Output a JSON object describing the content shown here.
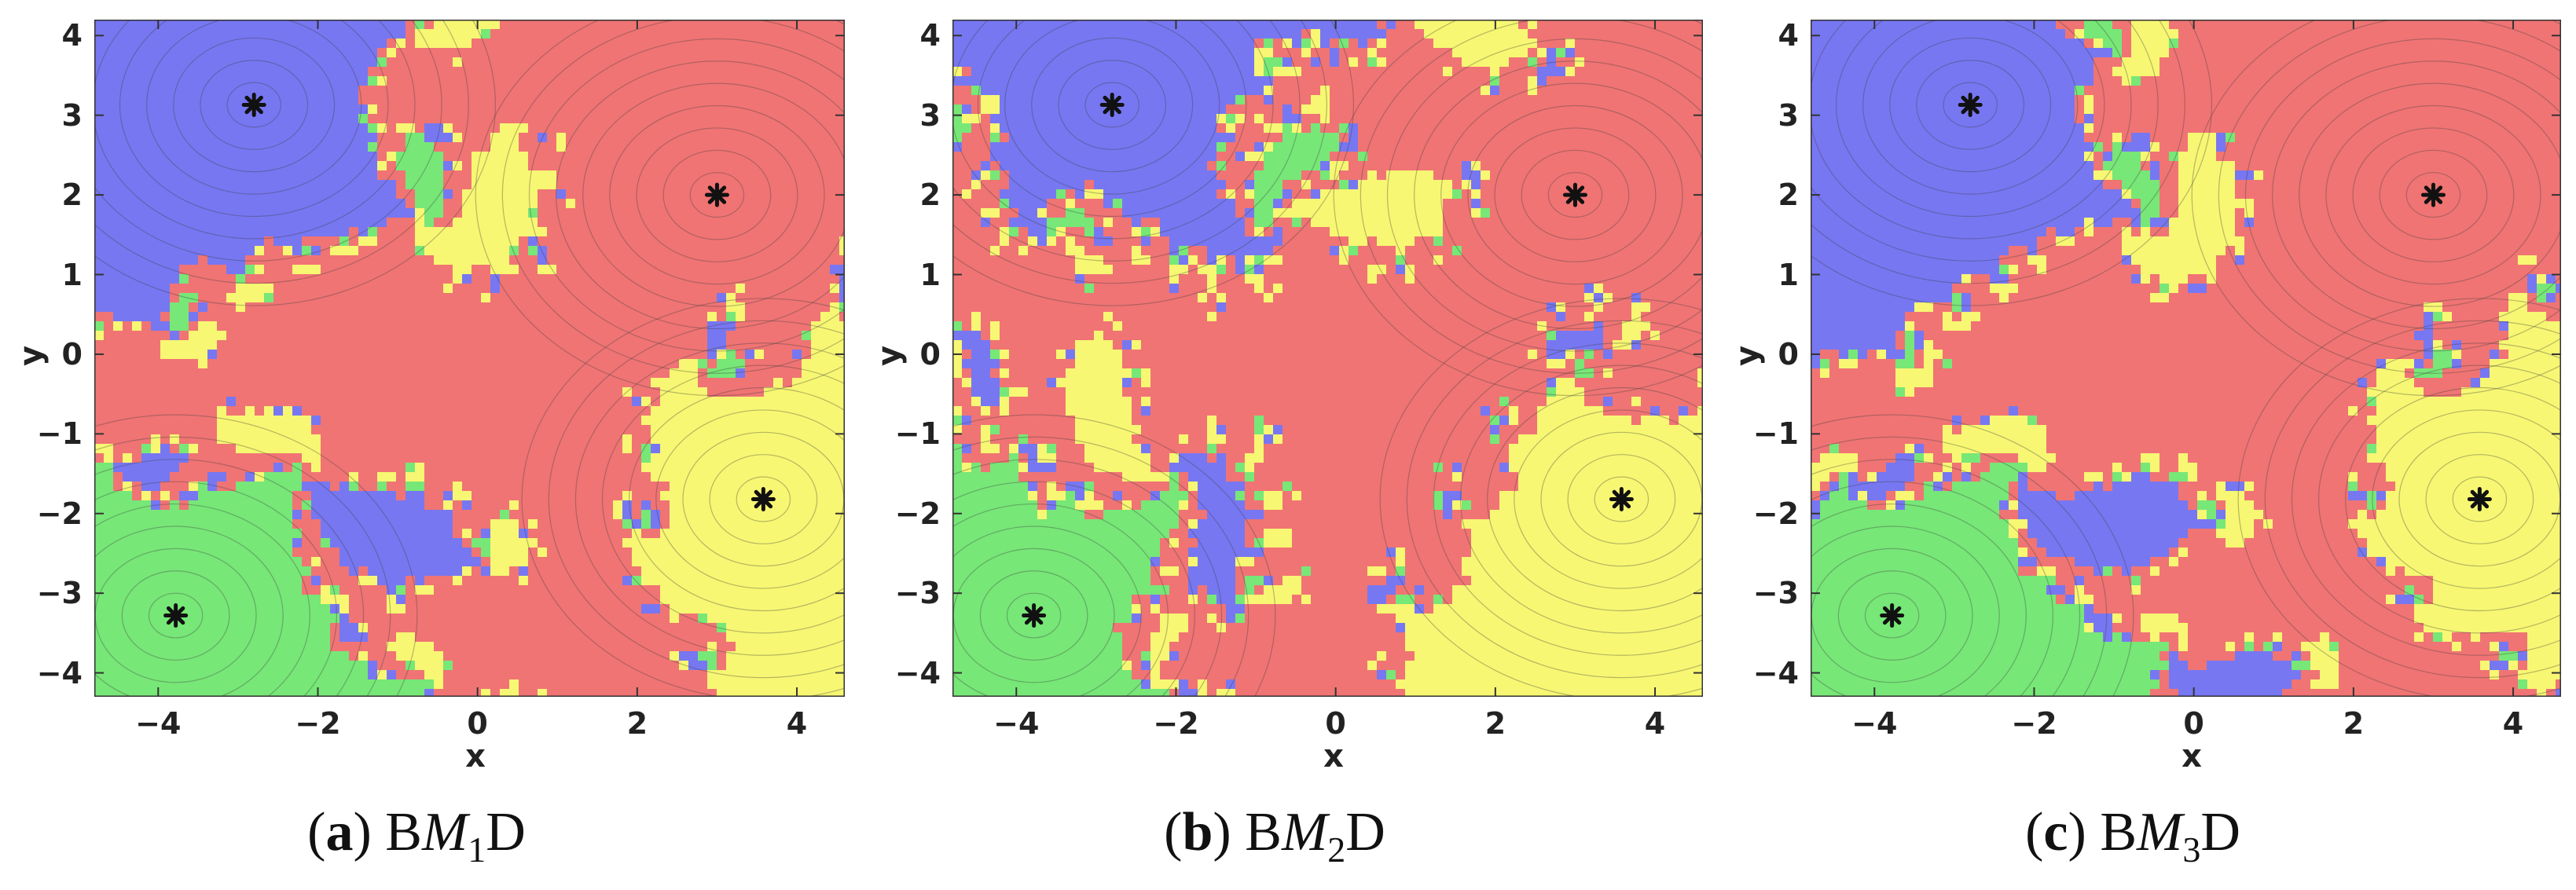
{
  "panels": [
    {
      "caption": {
        "letter": "a",
        "pre": "B",
        "italic": "M",
        "sub": "1",
        "post": "D"
      },
      "palette": [
        "#f07474",
        "#7777f2",
        "#77e777",
        "#f7f773"
      ]
    },
    {
      "caption": {
        "letter": "b",
        "pre": "B",
        "italic": "M",
        "sub": "2",
        "post": "D"
      },
      "palette": [
        "#f07474",
        "#7777f2",
        "#77e777",
        "#f7f773"
      ]
    },
    {
      "caption": {
        "letter": "c",
        "pre": "B",
        "italic": "M",
        "sub": "3",
        "post": "D"
      },
      "palette": [
        "#f07474",
        "#7777f2",
        "#77e777",
        "#f7f773"
      ]
    }
  ],
  "chart_data": {
    "type": "heatmap",
    "xlabel": "x",
    "ylabel": "y",
    "xlim": [
      -4.8,
      4.6
    ],
    "ylim": [
      -4.3,
      4.2
    ],
    "x_ticks": [
      "-4",
      "-2",
      "0",
      "2",
      "4"
    ],
    "y_ticks": [
      "4",
      "3",
      "2",
      "1",
      "0",
      "-1",
      "-2",
      "-3",
      "-4"
    ],
    "roots": [
      {
        "x": -2.8,
        "y": 3.13,
        "color": "#7777f2"
      },
      {
        "x": 3.0,
        "y": 2.0,
        "color": "#f07474"
      },
      {
        "x": 3.58,
        "y": -1.82,
        "color": "#f7f773"
      },
      {
        "x": -3.78,
        "y": -3.28,
        "color": "#77e777"
      }
    ],
    "marker_color": "#111111"
  }
}
